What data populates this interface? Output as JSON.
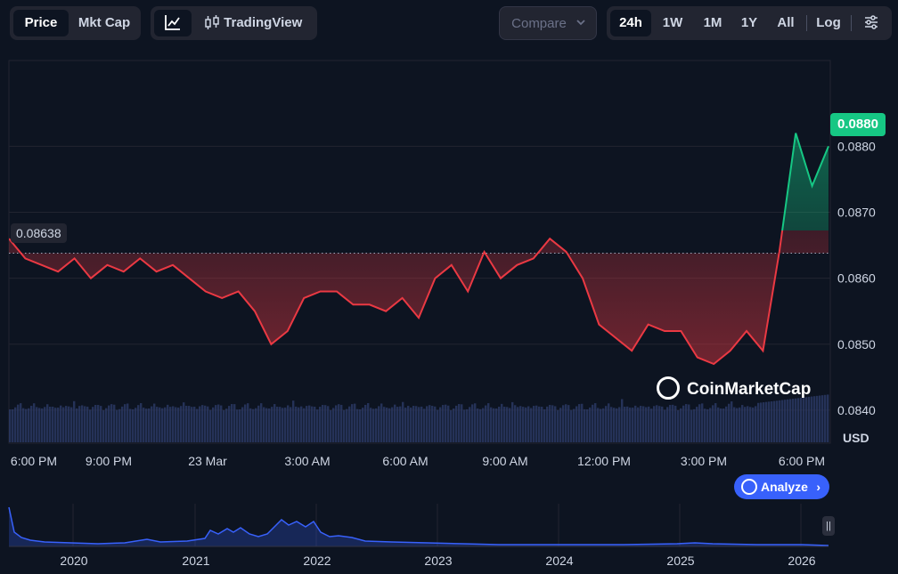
{
  "toolbar": {
    "view_tabs": [
      "Price",
      "Mkt Cap"
    ],
    "active_view": "Price",
    "tradingview_label": "TradingView",
    "compare_label": "Compare",
    "range_tabs": [
      "24h",
      "1W",
      "1M",
      "1Y",
      "All"
    ],
    "active_range": "24h",
    "log_label": "Log"
  },
  "chart": {
    "currency": "USD",
    "start_price_label": "0.08638",
    "current_price_label": "0.0880",
    "y_ticks": [
      "0.0880",
      "0.0870",
      "0.0860",
      "0.0850",
      "0.0840"
    ],
    "x_ticks": [
      "6:00 PM",
      "9:00 PM",
      "23 Mar",
      "3:00 AM",
      "6:00 AM",
      "9:00 AM",
      "12:00 PM",
      "3:00 PM",
      "6:00 PM"
    ],
    "watermark": "CoinMarketCap",
    "up_color": "#16c784",
    "down_color": "#ea3943"
  },
  "navigator": {
    "years": [
      "2020",
      "2021",
      "2022",
      "2023",
      "2024",
      "2025",
      "2026"
    ],
    "line_color": "#3861fb"
  },
  "analyze_label": "Analyze",
  "chart_data": {
    "type": "line",
    "xlabel": "",
    "ylabel": "",
    "ylim": [
      0.0835,
      0.0893
    ],
    "baseline": 0.08638,
    "x_ticks": [
      "6:00 PM",
      "9:00 PM",
      "23 Mar",
      "3:00 AM",
      "6:00 AM",
      "9:00 AM",
      "12:00 PM",
      "3:00 PM",
      "6:00 PM"
    ],
    "x": [
      0,
      0.5,
      1,
      1.5,
      2,
      2.5,
      3,
      3.5,
      4,
      4.5,
      5,
      5.5,
      6,
      6.5,
      7,
      7.5,
      8,
      8.5,
      9,
      9.5,
      10,
      10.5,
      11,
      11.5,
      12,
      12.5,
      13,
      13.5,
      14,
      14.5,
      15,
      15.5,
      16,
      16.5,
      17,
      17.5,
      18,
      18.5,
      19,
      19.5,
      20,
      20.5,
      21,
      21.5,
      22,
      22.5,
      23,
      23.5,
      24,
      24.5,
      25
    ],
    "values": [
      0.0866,
      0.0863,
      0.0862,
      0.0861,
      0.0863,
      0.086,
      0.0862,
      0.0861,
      0.0863,
      0.0861,
      0.0862,
      0.086,
      0.0858,
      0.0857,
      0.0858,
      0.0855,
      0.085,
      0.0852,
      0.0857,
      0.0858,
      0.0858,
      0.0856,
      0.0856,
      0.0855,
      0.0857,
      0.0854,
      0.086,
      0.0862,
      0.0858,
      0.0864,
      0.086,
      0.0862,
      0.0863,
      0.0866,
      0.0864,
      0.086,
      0.0853,
      0.0851,
      0.0849,
      0.0853,
      0.0852,
      0.0852,
      0.0848,
      0.0847,
      0.0849,
      0.0852,
      0.0849,
      0.0864,
      0.0882,
      0.0874,
      0.088
    ]
  }
}
